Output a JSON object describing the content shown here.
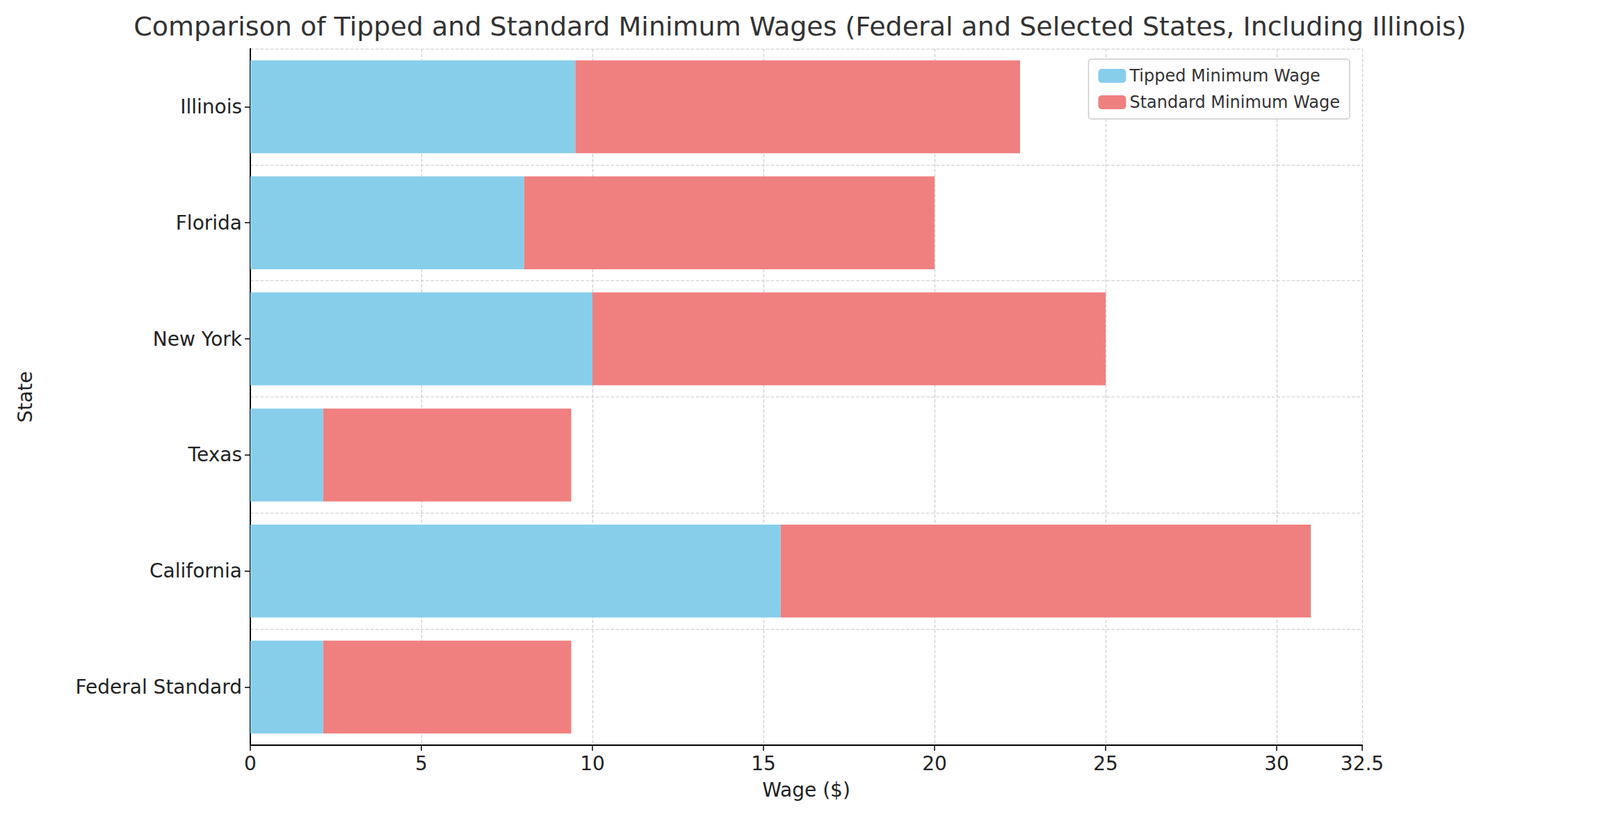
{
  "chart_data": {
    "type": "bar",
    "title": "Comparison of Tipped and Standard Minimum Wages (Federal and Selected States, Including Illinois)",
    "x_label": "Wage ($)",
    "y_label": "State",
    "orientation": "horizontal",
    "stacked": true,
    "grid": true,
    "legend": "upper right",
    "categories": [
      "Federal Standard",
      "California",
      "Texas",
      "New York",
      "Florida",
      "Illinois"
    ],
    "series": [
      {
        "name": "Tipped Minimum Wage",
        "color": "#87ceeb",
        "values": [
          2.13,
          15.5,
          2.13,
          10,
          8,
          9.5
        ]
      },
      {
        "name": "Standard Minimum Wage",
        "color": "#f08080",
        "values": [
          7.25,
          15.5,
          7.25,
          15,
          12,
          13
        ]
      }
    ],
    "xlim": [
      0,
      32.5
    ],
    "xticks": [
      0,
      5,
      10,
      15,
      20,
      25,
      30
    ]
  }
}
